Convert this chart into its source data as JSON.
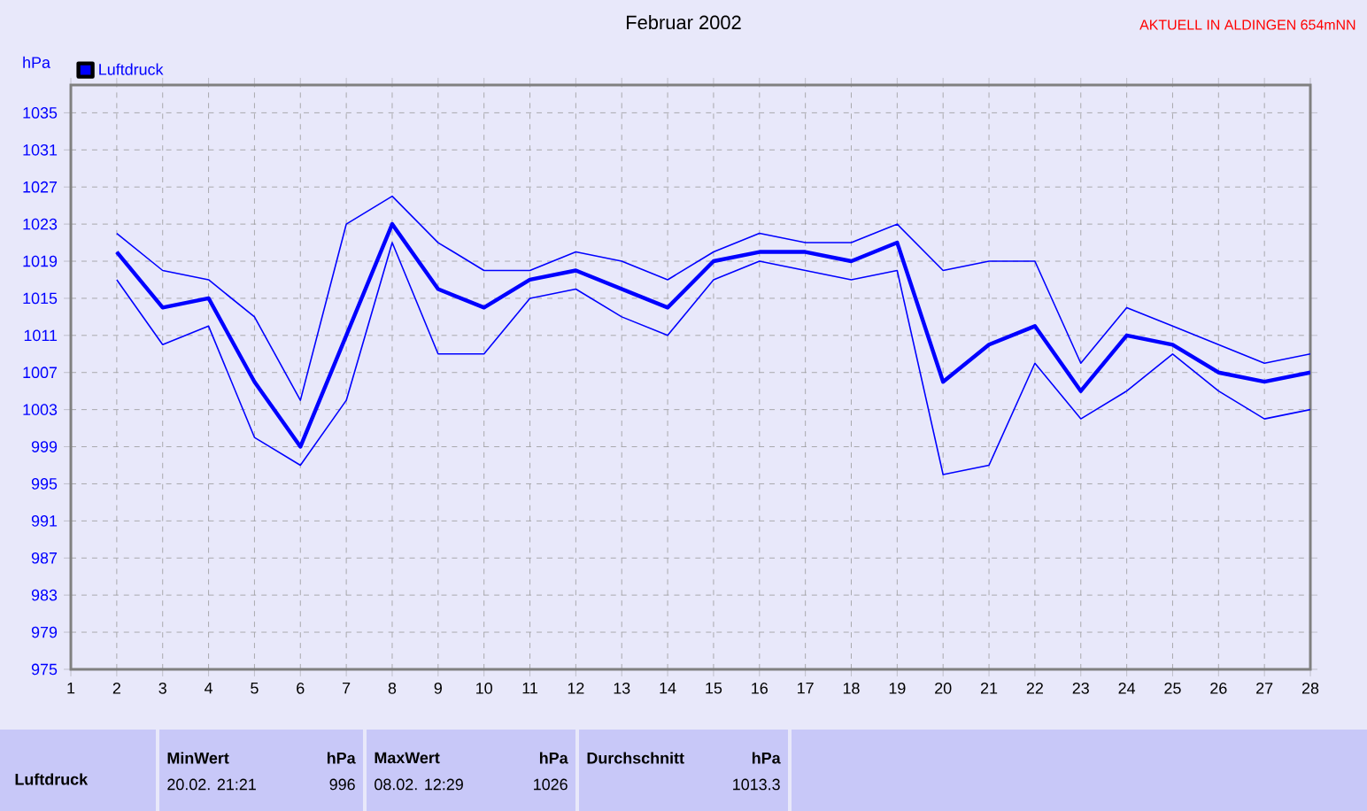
{
  "chart_data": {
    "type": "line",
    "title": "Februar 2002",
    "ylabel": "hPa",
    "x": [
      2,
      3,
      4,
      5,
      6,
      7,
      8,
      9,
      10,
      11,
      12,
      13,
      14,
      15,
      16,
      17,
      18,
      19,
      20,
      21,
      22,
      23,
      24,
      25,
      26,
      27,
      28
    ],
    "series": [
      {
        "color": "#0000ff",
        "values": [
          1022,
          1018,
          1017,
          1013,
          1004,
          1023,
          1026,
          1021,
          1018,
          1018,
          1020,
          1019,
          1017,
          1020,
          1022,
          1021,
          1021,
          1023,
          1018,
          1019,
          1019,
          1008,
          1014,
          1012,
          1010,
          1008,
          1009
        ]
      },
      {
        "name": "Luftdruck",
        "color": "#0000ff",
        "values": [
          1020,
          1014,
          1015,
          1006,
          999,
          1011,
          1023,
          1016,
          1014,
          1017,
          1018,
          1016,
          1014,
          1019,
          1020,
          1020,
          1019,
          1021,
          1006,
          1010,
          1012,
          1005,
          1011,
          1010,
          1007,
          1006,
          1007
        ]
      },
      {
        "color": "#0000ff",
        "values": [
          1017,
          1010,
          1012,
          1000,
          997,
          1004,
          1021,
          1009,
          1009,
          1015,
          1016,
          1013,
          1011,
          1017,
          1019,
          1018,
          1017,
          1018,
          996,
          997,
          1008,
          1002,
          1005,
          1009,
          1005,
          1002,
          1003
        ]
      }
    ],
    "xlim": [
      1,
      28
    ],
    "xticks": [
      1,
      2,
      3,
      4,
      5,
      6,
      7,
      8,
      9,
      10,
      11,
      12,
      13,
      14,
      15,
      16,
      17,
      18,
      19,
      20,
      21,
      22,
      23,
      24,
      25,
      26,
      27,
      28
    ],
    "ylim": [
      975,
      1038
    ],
    "yticks": [
      975,
      979,
      983,
      987,
      991,
      995,
      999,
      1003,
      1007,
      1011,
      1015,
      1019,
      1023,
      1027,
      1031,
      1035
    ],
    "grid": true,
    "legend": "top left",
    "marker": "none",
    "line_style": "solid",
    "annotations": [
      "Luftdruck",
      "MinWert",
      "hPa",
      "20.02.  21:21",
      "996",
      "MaxWert",
      "hPa",
      "08.02.  12:29",
      "1026",
      "Durchschnitt",
      "hPa",
      "1013.3",
      "AKTUELL IN ALDINGEN 654mNN"
    ]
  }
}
